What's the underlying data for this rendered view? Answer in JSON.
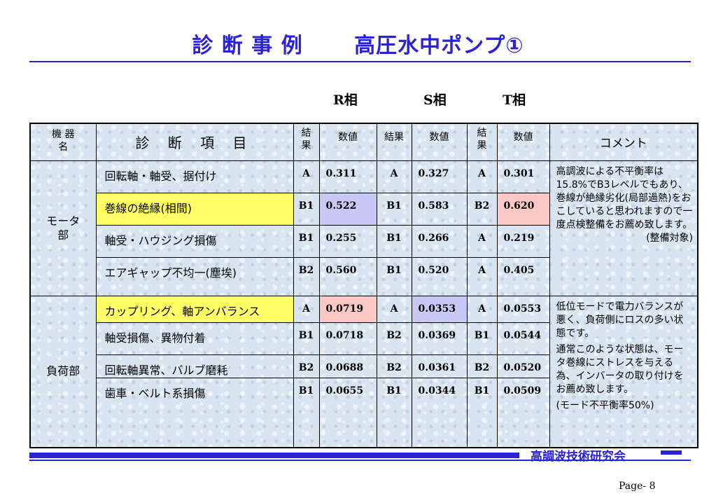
{
  "title": "診 断 事 例　　 高圧水中ポンプ①",
  "phases": {
    "r": "R相",
    "s": "S相",
    "t": "T相"
  },
  "headers": {
    "equipment": [
      "機 器",
      "名"
    ],
    "item": "診 断 項 目",
    "result_r": [
      "結",
      "果"
    ],
    "value_r": "数値",
    "result_s": "結果",
    "value_s": "数値",
    "result_t": [
      "結",
      "果"
    ],
    "value_t": "数値",
    "comment": "コメント"
  },
  "groups": [
    {
      "equipment": [
        "モータ",
        "部"
      ],
      "rows": [
        {
          "item": "回転軸・軸受、据付け",
          "r": "A",
          "rv": "0.311",
          "s": "A",
          "sv": "0.327",
          "t": "A",
          "tv": "0.301"
        },
        {
          "item": "巻線の絶縁(相間)",
          "r": "B1",
          "rv": "0.522",
          "s": "B1",
          "sv": "0.583",
          "t": "B2",
          "tv": "0.620"
        },
        {
          "item": "軸受・ハウジング損傷",
          "r": "B1",
          "rv": "0.255",
          "s": "B1",
          "sv": "0.266",
          "t": "A",
          "tv": "0.219"
        },
        {
          "item": "エアギャップ不均一(塵埃)",
          "r": "B2",
          "rv": "0.560",
          "s": "B1",
          "sv": "0.520",
          "t": "A",
          "tv": "0.405"
        }
      ],
      "comment": {
        "text": "高調波による不平衡率は15.8%でB3レベルでもあり、巻線が絶縁劣化(局部過熱)をおこしていると思われますので一度点検整備をお薦め致します。",
        "note": "(整備対象)"
      }
    },
    {
      "equipment": [
        "負荷部"
      ],
      "rows": [
        {
          "item": "カップリング、軸アンバランス",
          "r": "A",
          "rv": "0.0719",
          "s": "A",
          "sv": "0.0353",
          "t": "A",
          "tv": "0.0553"
        },
        {
          "item": "軸受損傷、異物付着",
          "r": "B1",
          "rv": "0.0718",
          "s": "B2",
          "sv": "0.0369",
          "t": "B1",
          "tv": "0.0544"
        },
        {
          "item": "回転軸異常、バルブ磨耗",
          "r": "B2",
          "rv": "0.0688",
          "s": "B2",
          "sv": "0.0361",
          "t": "B2",
          "tv": "0.0520"
        },
        {
          "item": "歯車・ベルト系損傷",
          "r": "B1",
          "rv": "0.0655",
          "s": "B1",
          "sv": "0.0344",
          "t": "B1",
          "tv": "0.0509"
        }
      ],
      "comment": {
        "p1": "低位モードで電力バランスが悪く、負荷側にロスの多い状態です。",
        "p2": "通常このような状態は、モータ巻線にストレスを与える為、インバータの取り付けをお薦め致します。",
        "note": "(モード不平衡率50%)"
      }
    }
  ],
  "highlight_colors": {
    "yellow": "#ffff66",
    "pink": "#fcc8c4",
    "blue": "#c8c8f6",
    "accent": "#2a22d8"
  },
  "footer": {
    "org": "高調波技術研究会",
    "page": "Page- 8"
  }
}
